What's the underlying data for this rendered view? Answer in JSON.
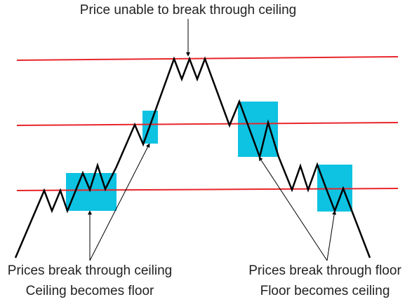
{
  "colors": {
    "background": "#ffffff",
    "level_line": "#e8262b",
    "highlight": "#0ec2e2",
    "price_path": "#000000",
    "arrow": "#000000",
    "text": "#222222"
  },
  "captions": {
    "top": "Price unable to break through ceiling",
    "left_line1": "Prices break through ceiling",
    "left_line2": "Ceiling becomes floor",
    "right_line1": "Prices break through floor",
    "right_line2": "Floor becomes ceiling"
  }
}
